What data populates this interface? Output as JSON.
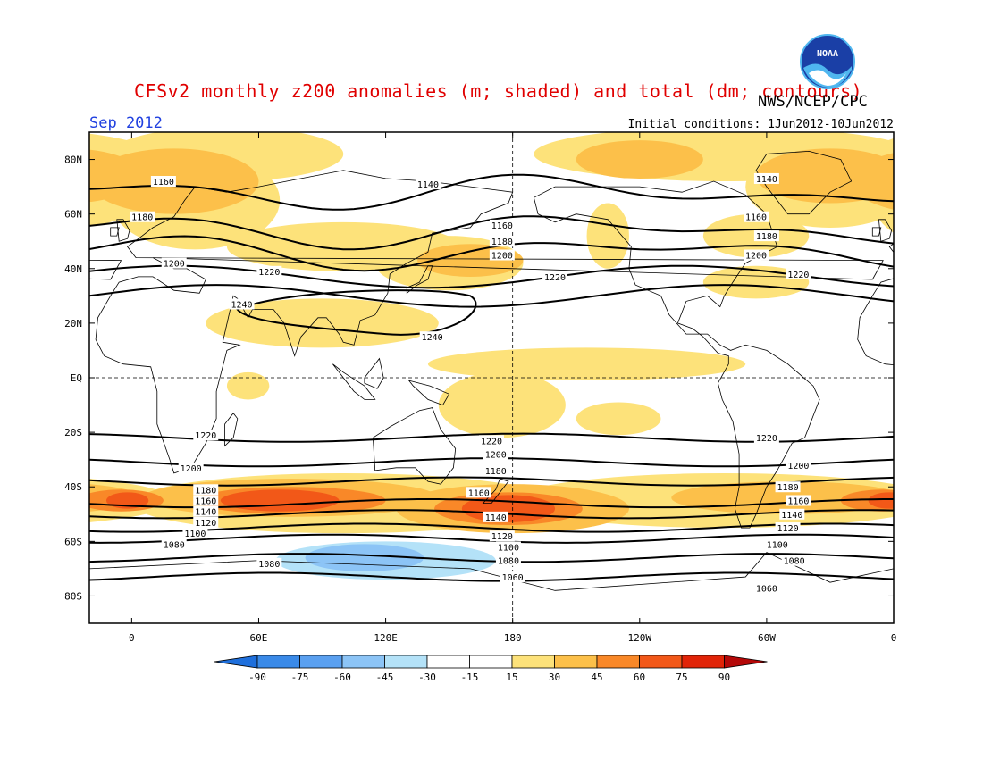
{
  "header": {
    "title": "CFSv2 monthly z200 anomalies (m; shaded) and total (dm; contours)",
    "credit": "NWS/NCEP/CPC",
    "valid_month": "Sep 2012",
    "initial_conditions": "Initial conditions: 1Jun2012-10Jun2012",
    "logo_text": "NOAA"
  },
  "map": {
    "lat_labels": [
      "80N",
      "60N",
      "40N",
      "20N",
      "EQ",
      "20S",
      "40S",
      "60S",
      "80S"
    ],
    "lat_values": [
      80,
      60,
      40,
      20,
      0,
      -20,
      -40,
      -60,
      -80
    ],
    "lon_labels": [
      "0",
      "60E",
      "120E",
      "180",
      "120W",
      "60W",
      "0"
    ],
    "lon_values": [
      0,
      60,
      120,
      180,
      240,
      300,
      360
    ]
  },
  "contours": [
    {
      "value": "1240",
      "lat": 21
    },
    {
      "value": "1220",
      "lat": 30
    },
    {
      "value": "1200",
      "lat": 37
    },
    {
      "value": "1180",
      "lat": 46
    },
    {
      "value": "1160",
      "lat": 54
    },
    {
      "value": "1140",
      "lat": 68
    },
    {
      "value": "1220",
      "lat": -22
    },
    {
      "value": "1200",
      "lat": -31
    },
    {
      "value": "1180",
      "lat": -38
    },
    {
      "value": "1160",
      "lat": -46
    },
    {
      "value": "1140",
      "lat": -50
    },
    {
      "value": "1120",
      "lat": -55
    },
    {
      "value": "1100",
      "lat": -59
    },
    {
      "value": "1080",
      "lat": -66
    },
    {
      "value": "1060",
      "lat": -73
    }
  ],
  "contour_labels": [
    {
      "text": "1160",
      "lon": 15,
      "lat": 72
    },
    {
      "text": "1140",
      "lon": 140,
      "lat": 71
    },
    {
      "text": "1140",
      "lon": 300,
      "lat": 73
    },
    {
      "text": "1180",
      "lon": 5,
      "lat": 59
    },
    {
      "text": "1160",
      "lon": 175,
      "lat": 56
    },
    {
      "text": "1160",
      "lon": 295,
      "lat": 59
    },
    {
      "text": "1180",
      "lon": 175,
      "lat": 50
    },
    {
      "text": "1180",
      "lon": 300,
      "lat": 52
    },
    {
      "text": "1200",
      "lon": 20,
      "lat": 42
    },
    {
      "text": "1200",
      "lon": 175,
      "lat": 45
    },
    {
      "text": "1200",
      "lon": 295,
      "lat": 45
    },
    {
      "text": "1220",
      "lon": 65,
      "lat": 39
    },
    {
      "text": "1220",
      "lon": 200,
      "lat": 37
    },
    {
      "text": "1220",
      "lon": 315,
      "lat": 38
    },
    {
      "text": "1240",
      "lon": 52,
      "lat": 27
    },
    {
      "text": "1240",
      "lon": 142,
      "lat": 15
    },
    {
      "text": "1220",
      "lon": 35,
      "lat": -21
    },
    {
      "text": "1220",
      "lon": 170,
      "lat": -23
    },
    {
      "text": "1220",
      "lon": 300,
      "lat": -22
    },
    {
      "text": "1200",
      "lon": 28,
      "lat": -33
    },
    {
      "text": "1200",
      "lon": 172,
      "lat": -28
    },
    {
      "text": "1200",
      "lon": 315,
      "lat": -32
    },
    {
      "text": "1180",
      "lon": 35,
      "lat": -41
    },
    {
      "text": "1180",
      "lon": 172,
      "lat": -34
    },
    {
      "text": "1180",
      "lon": 310,
      "lat": -40
    },
    {
      "text": "1160",
      "lon": 35,
      "lat": -45
    },
    {
      "text": "1160",
      "lon": 164,
      "lat": -42
    },
    {
      "text": "1160",
      "lon": 315,
      "lat": -45
    },
    {
      "text": "1140",
      "lon": 35,
      "lat": -49
    },
    {
      "text": "1140",
      "lon": 172,
      "lat": -51
    },
    {
      "text": "1140",
      "lon": 312,
      "lat": -50
    },
    {
      "text": "1120",
      "lon": 35,
      "lat": -53
    },
    {
      "text": "1120",
      "lon": 175,
      "lat": -58
    },
    {
      "text": "1120",
      "lon": 310,
      "lat": -55
    },
    {
      "text": "1100",
      "lon": 30,
      "lat": -57
    },
    {
      "text": "1100",
      "lon": 178,
      "lat": -62
    },
    {
      "text": "1100",
      "lon": 305,
      "lat": -61
    },
    {
      "text": "1080",
      "lon": 20,
      "lat": -61
    },
    {
      "text": "1080",
      "lon": 178,
      "lat": -67
    },
    {
      "text": "1080",
      "lon": 313,
      "lat": -67
    },
    {
      "text": "1080",
      "lon": 65,
      "lat": -68
    },
    {
      "text": "1060",
      "lon": 180,
      "lat": -73
    },
    {
      "text": "1060",
      "lon": 300,
      "lat": -77
    }
  ],
  "anomaly_regions": [
    {
      "level": 15,
      "lon": 45,
      "lat": 82,
      "rlon": 55,
      "rlat": 10
    },
    {
      "level": 15,
      "lon": 280,
      "lat": 82,
      "rlon": 90,
      "rlat": 10
    },
    {
      "level": 15,
      "lon": 30,
      "lat": 65,
      "rlon": 40,
      "rlat": 18
    },
    {
      "level": 30,
      "lon": 20,
      "lat": 72,
      "rlon": 40,
      "rlat": 12
    },
    {
      "level": 15,
      "lon": 330,
      "lat": 70,
      "rlon": 40,
      "rlat": 15
    },
    {
      "level": 30,
      "lon": 330,
      "lat": 74,
      "rlon": 35,
      "rlat": 10
    },
    {
      "level": 30,
      "lon": 240,
      "lat": 80,
      "rlon": 30,
      "rlat": 7
    },
    {
      "level": 15,
      "lon": 100,
      "lat": 48,
      "rlon": 55,
      "rlat": 9
    },
    {
      "level": 15,
      "lon": 150,
      "lat": 42,
      "rlon": 35,
      "rlat": 10
    },
    {
      "level": 30,
      "lon": 160,
      "lat": 43,
      "rlon": 25,
      "rlat": 6
    },
    {
      "level": 15,
      "lon": 225,
      "lat": 52,
      "rlon": 10,
      "rlat": 12
    },
    {
      "level": 15,
      "lon": 295,
      "lat": 52,
      "rlon": 25,
      "rlat": 8
    },
    {
      "level": 15,
      "lon": 295,
      "lat": 35,
      "rlon": 25,
      "rlat": 6
    },
    {
      "level": 15,
      "lon": 90,
      "lat": 20,
      "rlon": 55,
      "rlat": 9
    },
    {
      "level": 15,
      "lon": 215,
      "lat": 5,
      "rlon": 75,
      "rlat": 6
    },
    {
      "level": 15,
      "lon": 175,
      "lat": -10,
      "rlon": 30,
      "rlat": 12
    },
    {
      "level": 15,
      "lon": 55,
      "lat": -3,
      "rlon": 10,
      "rlat": 5
    },
    {
      "level": 15,
      "lon": 230,
      "lat": -15,
      "rlon": 20,
      "rlat": 6
    },
    {
      "level": 15,
      "lon": 100,
      "lat": -46,
      "rlon": 100,
      "rlat": 11
    },
    {
      "level": 15,
      "lon": 280,
      "lat": -45,
      "rlon": 100,
      "rlat": 10
    },
    {
      "level": 30,
      "lon": 75,
      "lat": -44,
      "rlon": 70,
      "rlat": 7
    },
    {
      "level": 30,
      "lon": 180,
      "lat": -48,
      "rlon": 55,
      "rlat": 9
    },
    {
      "level": 30,
      "lon": 310,
      "lat": -44,
      "rlon": 55,
      "rlat": 6
    },
    {
      "level": 45,
      "lon": 75,
      "lat": -45,
      "rlon": 45,
      "rlat": 5
    },
    {
      "level": 45,
      "lon": 178,
      "lat": -48,
      "rlon": 35,
      "rlat": 6
    },
    {
      "level": 45,
      "lon": 355,
      "lat": -45,
      "rlon": 20,
      "rlat": 4
    },
    {
      "level": 60,
      "lon": 70,
      "lat": -45,
      "rlon": 28,
      "rlat": 4
    },
    {
      "level": 60,
      "lon": 178,
      "lat": -48,
      "rlon": 22,
      "rlat": 5
    },
    {
      "level": 60,
      "lon": 358,
      "lat": -45,
      "rlon": 10,
      "rlat": 3
    },
    {
      "level": -15,
      "lon": 120,
      "lat": -67,
      "rlon": 52,
      "rlat": 7
    },
    {
      "level": -30,
      "lon": 110,
      "lat": -66,
      "rlon": 28,
      "rlat": 5
    }
  ],
  "colorbar": {
    "labels": [
      "-90",
      "-75",
      "-60",
      "-45",
      "-30",
      "-15",
      "15",
      "30",
      "45",
      "60",
      "75",
      "90"
    ],
    "colors": [
      "#1e6fdc",
      "#3a8ae8",
      "#5aa0f0",
      "#8cc4f6",
      "#b4e2f8",
      "#ffffff",
      "#fde27a",
      "#fcc04a",
      "#f98828",
      "#f25818",
      "#e12408",
      "#b40808"
    ]
  },
  "level_colors": {
    "-30": "#8cc4f6",
    "-15": "#b4e2f8",
    "15": "#fde27a",
    "30": "#fcc04a",
    "45": "#f98828",
    "60": "#f25818"
  }
}
